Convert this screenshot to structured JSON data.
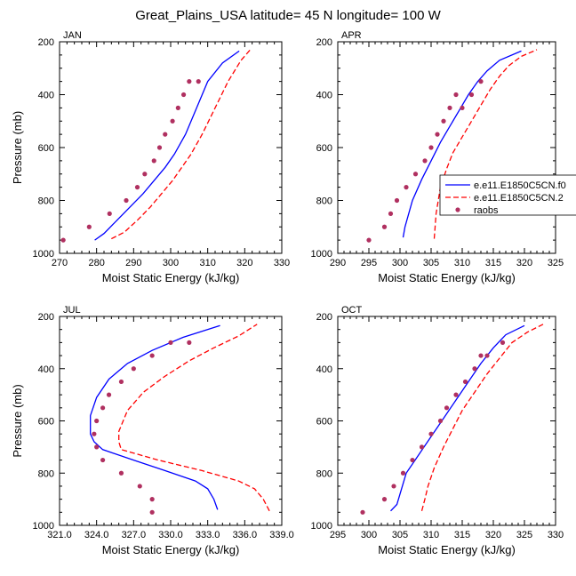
{
  "figure": {
    "title": "Great_Plains_USA  latitude= 45 N longitude= 100 W"
  },
  "legend": {
    "entries": [
      {
        "label": "e.e11.E1850C5CN.f0",
        "style": "solid",
        "color": "#0000ff"
      },
      {
        "label": "e.e11.E1850C5CN.2",
        "style": "dashed",
        "color": "#ff0000"
      },
      {
        "label": "raobs",
        "style": "dots",
        "color": "#b03060"
      }
    ]
  },
  "colors": {
    "model_solid": "#0000ff",
    "model_dashed": "#ff0000",
    "raobs": "#b03060"
  },
  "chart_data": [
    {
      "type": "line",
      "panel_label": "JAN",
      "xlabel": "Moist Static Energy (kJ/kg)",
      "ylabel": "Pressure (mb)",
      "xlim": [
        270,
        330
      ],
      "ylim": [
        1000,
        200
      ],
      "y_inverted": true,
      "xticks": [
        270,
        280,
        290,
        300,
        310,
        320,
        330
      ],
      "xtick_labels": [
        "270",
        "280",
        "290",
        "300",
        "310",
        "320",
        "330"
      ],
      "yticks": [
        200,
        400,
        600,
        800,
        1000
      ],
      "ytick_labels": [
        "200",
        "400",
        "600",
        "800",
        "1000"
      ],
      "series": [
        {
          "name": "e.e11.E1850C5CN.f0",
          "style": "solid",
          "x": [
            279.5,
            282.0,
            285.5,
            289.0,
            292.5,
            295.5,
            298.5,
            301.0,
            304.0,
            307.0,
            310.0,
            314.0,
            318.5
          ],
          "y": [
            950,
            925,
            875,
            825,
            775,
            725,
            675,
            625,
            550,
            450,
            350,
            280,
            235
          ]
        },
        {
          "name": "e.e11.E1850C5CN.2",
          "style": "dashed",
          "x": [
            284.0,
            287.5,
            291.0,
            294.5,
            297.5,
            300.5,
            303.0,
            305.5,
            308.5,
            312.0,
            315.5,
            319.0,
            321.5
          ],
          "y": [
            945,
            920,
            875,
            825,
            775,
            725,
            675,
            625,
            550,
            450,
            350,
            270,
            230
          ]
        },
        {
          "name": "raobs",
          "style": "dots",
          "x": [
            271.0,
            278.0,
            283.5,
            288.0,
            291.0,
            293.0,
            295.5,
            297.0,
            298.5,
            300.5,
            302.0,
            303.5,
            305.0,
            307.5
          ],
          "y": [
            950,
            900,
            850,
            800,
            750,
            700,
            650,
            600,
            550,
            500,
            450,
            400,
            350,
            350
          ]
        }
      ]
    },
    {
      "type": "line",
      "panel_label": "APR",
      "xlabel": "Moist Static Energy (kJ/kg)",
      "ylabel": "",
      "xlim": [
        290,
        325
      ],
      "ylim": [
        1000,
        200
      ],
      "y_inverted": true,
      "xticks": [
        290,
        295,
        300,
        305,
        310,
        315,
        320,
        325
      ],
      "xtick_labels": [
        "290",
        "295",
        "300",
        "305",
        "310",
        "315",
        "320",
        "325"
      ],
      "yticks": [
        200,
        400,
        600,
        800,
        1000
      ],
      "ytick_labels": [
        "200",
        "400",
        "600",
        "800",
        "1000"
      ],
      "series": [
        {
          "name": "e.e11.E1850C5CN.f0",
          "style": "solid",
          "x": [
            300.5,
            300.8,
            302.0,
            303.5,
            305.0,
            306.5,
            308.0,
            309.5,
            311.0,
            312.5,
            314.0,
            316.0,
            319.5
          ],
          "y": [
            940,
            900,
            800,
            720,
            650,
            580,
            520,
            460,
            400,
            350,
            310,
            270,
            235
          ]
        },
        {
          "name": "e.e11.E1850C5CN.2",
          "style": "dashed",
          "x": [
            305.5,
            305.8,
            306.5,
            307.5,
            308.5,
            310.0,
            311.5,
            313.0,
            314.5,
            316.0,
            317.5,
            319.5,
            322.0
          ],
          "y": [
            945,
            850,
            750,
            680,
            620,
            560,
            500,
            440,
            380,
            330,
            290,
            255,
            230
          ]
        },
        {
          "name": "raobs",
          "style": "dots",
          "x": [
            295.0,
            297.5,
            298.5,
            299.5,
            301.0,
            302.5,
            304.0,
            305.0,
            306.0,
            307.0,
            308.0,
            309.0,
            310.0,
            311.5,
            313.0
          ],
          "y": [
            950,
            900,
            850,
            800,
            750,
            700,
            650,
            600,
            550,
            500,
            450,
            400,
            450,
            400,
            350
          ]
        }
      ]
    },
    {
      "type": "line",
      "panel_label": "JUL",
      "xlabel": "Moist Static Energy (kJ/kg)",
      "ylabel": "Pressure (mb)",
      "xlim": [
        321,
        339
      ],
      "ylim": [
        1000,
        200
      ],
      "y_inverted": true,
      "xticks": [
        321,
        324,
        327,
        330,
        333,
        336,
        339
      ],
      "xtick_labels": [
        "321.0",
        "324.0",
        "327.0",
        "330.0",
        "333.0",
        "336.0",
        "339.0"
      ],
      "yticks": [
        200,
        400,
        600,
        800,
        1000
      ],
      "ytick_labels": [
        "200",
        "400",
        "600",
        "800",
        "1000"
      ],
      "series": [
        {
          "name": "e.e11.E1850C5CN.f0",
          "style": "solid",
          "x": [
            333.8,
            333.5,
            333.0,
            332.0,
            329.5,
            327.0,
            324.5,
            323.8,
            323.5,
            323.5,
            324.0,
            325.0,
            326.5,
            328.5,
            331.0,
            334.0
          ],
          "y": [
            940,
            900,
            860,
            830,
            790,
            750,
            710,
            680,
            650,
            580,
            510,
            440,
            380,
            330,
            280,
            235
          ]
        },
        {
          "name": "e.e11.E1850C5CN.2",
          "style": "dashed",
          "x": [
            338.0,
            337.5,
            336.8,
            335.5,
            332.5,
            329.0,
            326.0,
            325.8,
            325.8,
            326.5,
            327.8,
            329.5,
            331.5,
            333.5,
            335.5,
            337.0
          ],
          "y": [
            945,
            900,
            860,
            830,
            790,
            750,
            710,
            680,
            640,
            560,
            490,
            430,
            370,
            320,
            275,
            230
          ]
        },
        {
          "name": "raobs",
          "style": "dots",
          "x": [
            328.5,
            328.5,
            327.5,
            326.0,
            324.5,
            324.0,
            323.8,
            324.0,
            324.5,
            325.0,
            326.0,
            327.0,
            328.5,
            330.0,
            331.5
          ],
          "y": [
            950,
            900,
            850,
            800,
            750,
            700,
            650,
            600,
            550,
            500,
            450,
            400,
            350,
            300,
            300
          ]
        }
      ]
    },
    {
      "type": "line",
      "panel_label": "OCT",
      "xlabel": "Moist Static Energy (kJ/kg)",
      "ylabel": "",
      "xlim": [
        295,
        330
      ],
      "ylim": [
        1000,
        200
      ],
      "y_inverted": true,
      "xticks": [
        295,
        300,
        305,
        310,
        315,
        320,
        325,
        330
      ],
      "xtick_labels": [
        "295",
        "300",
        "305",
        "310",
        "315",
        "320",
        "325",
        "330"
      ],
      "yticks": [
        200,
        400,
        600,
        800,
        1000
      ],
      "ytick_labels": [
        "200",
        "400",
        "600",
        "800",
        "1000"
      ],
      "series": [
        {
          "name": "e.e11.E1850C5CN.f0",
          "style": "solid",
          "x": [
            303.5,
            304.5,
            305.0,
            306.0,
            308.0,
            310.0,
            312.0,
            314.0,
            316.0,
            318.0,
            320.0,
            322.0,
            325.0
          ],
          "y": [
            945,
            920,
            880,
            800,
            730,
            660,
            590,
            520,
            450,
            380,
            320,
            270,
            235
          ]
        },
        {
          "name": "e.e11.E1850C5CN.2",
          "style": "dashed",
          "x": [
            308.5,
            309.0,
            309.5,
            310.5,
            312.0,
            313.5,
            315.0,
            317.0,
            319.0,
            321.0,
            323.0,
            325.5,
            328.0
          ],
          "y": [
            945,
            900,
            850,
            780,
            700,
            630,
            560,
            490,
            420,
            360,
            300,
            260,
            230
          ]
        },
        {
          "name": "raobs",
          "style": "dots",
          "x": [
            299.0,
            302.5,
            304.0,
            305.5,
            307.0,
            308.5,
            310.0,
            311.5,
            312.5,
            314.0,
            315.5,
            317.0,
            318.0,
            319.0,
            321.5
          ],
          "y": [
            950,
            900,
            850,
            800,
            750,
            700,
            650,
            600,
            550,
            500,
            450,
            400,
            350,
            350,
            300
          ]
        }
      ]
    }
  ]
}
